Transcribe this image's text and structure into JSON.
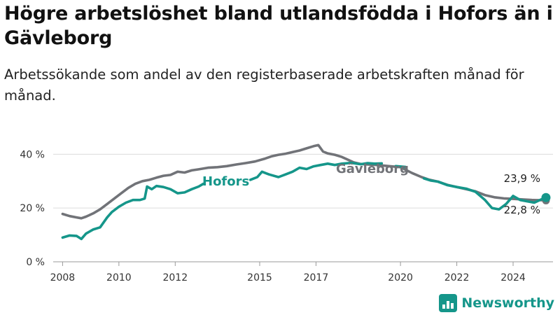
{
  "title": "Högre arbetslöshet bland utlandsfödda i Hofors än i Gävleborg",
  "subtitle": "Arbetssökande som andel av den registerbaserade arbetskraften månad för månad.",
  "brand": {
    "name": "Newsworthy",
    "logo_icon": "bar-chart-logo-icon",
    "color": "#15968a"
  },
  "chart_data": {
    "type": "line",
    "xlabel": "",
    "ylabel": "",
    "x_range": [
      "2007-09",
      "2025-06"
    ],
    "ylim": [
      0,
      44
    ],
    "y_ticks": [
      0,
      20,
      40
    ],
    "y_tick_labels": [
      "0 %",
      "20 %",
      "40 %"
    ],
    "x_ticks": [
      "2008-01",
      "2010-01",
      "2012-01",
      "2015-01",
      "2017-01",
      "2020-01",
      "2022-01",
      "2024-01"
    ],
    "x_tick_labels": [
      "2008",
      "2010",
      "2012",
      "2015",
      "2017",
      "2020",
      "2022",
      "2024"
    ],
    "grid": true,
    "legend": "inline labels",
    "series": [
      {
        "name": "Gävleborg",
        "color": "#717378",
        "end_label": "22,8 %",
        "points": [
          [
            "2008-01",
            17.8
          ],
          [
            "2008-04",
            17.0
          ],
          [
            "2008-07",
            16.5
          ],
          [
            "2008-09",
            16.2
          ],
          [
            "2008-11",
            16.8
          ],
          [
            "2009-02",
            18.0
          ],
          [
            "2009-05",
            19.5
          ],
          [
            "2009-08",
            21.5
          ],
          [
            "2009-11",
            23.5
          ],
          [
            "2010-02",
            25.5
          ],
          [
            "2010-05",
            27.5
          ],
          [
            "2010-08",
            29.0
          ],
          [
            "2010-11",
            30.0
          ],
          [
            "2011-02",
            30.5
          ],
          [
            "2011-05",
            31.3
          ],
          [
            "2011-08",
            32.0
          ],
          [
            "2011-11",
            32.3
          ],
          [
            "2012-02",
            33.5
          ],
          [
            "2012-05",
            33.2
          ],
          [
            "2012-08",
            34.0
          ],
          [
            "2012-11",
            34.4
          ],
          [
            "2013-03",
            35.0
          ],
          [
            "2013-07",
            35.2
          ],
          [
            "2013-11",
            35.6
          ],
          [
            "2014-03",
            36.2
          ],
          [
            "2014-07",
            36.7
          ],
          [
            "2014-11",
            37.3
          ],
          [
            "2015-03",
            38.3
          ],
          [
            "2015-06",
            39.2
          ],
          [
            "2015-09",
            39.8
          ],
          [
            "2015-12",
            40.2
          ],
          [
            "2016-03",
            40.8
          ],
          [
            "2016-06",
            41.4
          ],
          [
            "2016-09",
            42.2
          ],
          [
            "2016-12",
            43.0
          ],
          [
            "2017-02",
            43.4
          ],
          [
            "2017-04",
            41.0
          ],
          [
            "2017-06",
            40.3
          ],
          [
            "2017-09",
            39.8
          ],
          [
            "2017-12",
            39.0
          ],
          [
            "2018-02",
            38.2
          ],
          [
            "2018-05",
            37.0
          ],
          [
            "2018-08",
            36.4
          ],
          [
            "2018-11",
            36.2
          ],
          [
            "2019-03",
            36.0
          ],
          [
            "2019-08",
            35.6
          ],
          [
            "2020-01",
            35.2
          ],
          [
            "2020-06",
            33.0
          ],
          [
            "2020-10",
            31.5
          ],
          [
            "2021-01",
            30.6
          ],
          [
            "2021-05",
            29.8
          ],
          [
            "2021-09",
            28.6
          ],
          [
            "2022-01",
            27.8
          ],
          [
            "2022-05",
            27.0
          ],
          [
            "2022-09",
            26.2
          ],
          [
            "2023-01",
            24.8
          ],
          [
            "2023-05",
            24.0
          ],
          [
            "2023-09",
            23.6
          ],
          [
            "2024-01",
            23.4
          ],
          [
            "2024-05",
            23.2
          ],
          [
            "2024-09",
            23.0
          ],
          [
            "2025-01",
            22.9
          ],
          [
            "2025-03",
            22.8
          ]
        ]
      },
      {
        "name": "Hofors",
        "color": "#15968a",
        "end_label": "23,9 %",
        "points": [
          [
            "2008-01",
            9.0
          ],
          [
            "2008-04",
            9.8
          ],
          [
            "2008-07",
            9.6
          ],
          [
            "2008-09",
            8.5
          ],
          [
            "2008-11",
            10.5
          ],
          [
            "2009-02",
            12.0
          ],
          [
            "2009-05",
            12.8
          ],
          [
            "2009-08",
            16.5
          ],
          [
            "2009-10",
            18.5
          ],
          [
            "2010-01",
            20.5
          ],
          [
            "2010-04",
            22.0
          ],
          [
            "2010-07",
            23.0
          ],
          [
            "2010-10",
            23.0
          ],
          [
            "2010-12",
            23.5
          ],
          [
            "2011-01",
            28.0
          ],
          [
            "2011-03",
            27.0
          ],
          [
            "2011-05",
            28.2
          ],
          [
            "2011-08",
            27.8
          ],
          [
            "2011-11",
            27.0
          ],
          [
            "2012-02",
            25.5
          ],
          [
            "2012-05",
            25.8
          ],
          [
            "2012-08",
            27.0
          ],
          [
            "2012-11",
            28.0
          ],
          [
            "2013-01",
            29.0
          ],
          null,
          [
            "2014-09",
            30.5
          ],
          [
            "2014-12",
            31.5
          ],
          [
            "2015-02",
            33.5
          ],
          [
            "2015-05",
            32.5
          ],
          [
            "2015-09",
            31.5
          ],
          [
            "2015-12",
            32.5
          ],
          [
            "2016-03",
            33.5
          ],
          [
            "2016-06",
            35.0
          ],
          [
            "2016-09",
            34.5
          ],
          [
            "2016-12",
            35.5
          ],
          [
            "2017-03",
            36.0
          ],
          [
            "2017-06",
            36.5
          ],
          [
            "2017-09",
            36.0
          ],
          [
            "2017-12",
            36.5
          ],
          [
            "2018-04",
            36.8
          ],
          [
            "2018-08",
            36.3
          ],
          [
            "2018-11",
            36.7
          ],
          [
            "2019-02",
            36.5
          ],
          [
            "2019-05",
            36.6
          ],
          null,
          [
            "2019-11",
            35.6
          ],
          [
            "2020-03",
            35.3
          ],
          null,
          [
            "2020-11",
            31.0
          ],
          [
            "2021-02",
            30.2
          ],
          [
            "2021-05",
            29.8
          ],
          [
            "2021-09",
            28.5
          ],
          [
            "2022-01",
            27.8
          ],
          [
            "2022-05",
            27.2
          ],
          [
            "2022-09",
            26.0
          ],
          [
            "2023-01",
            23.0
          ],
          [
            "2023-04",
            20.0
          ],
          [
            "2023-07",
            19.5
          ],
          [
            "2023-10",
            21.5
          ],
          [
            "2024-01",
            24.5
          ],
          [
            "2024-04",
            23.0
          ],
          [
            "2024-07",
            22.5
          ],
          [
            "2024-10",
            22.0
          ],
          [
            "2025-01",
            23.2
          ],
          [
            "2025-03",
            23.9
          ]
        ]
      }
    ]
  }
}
